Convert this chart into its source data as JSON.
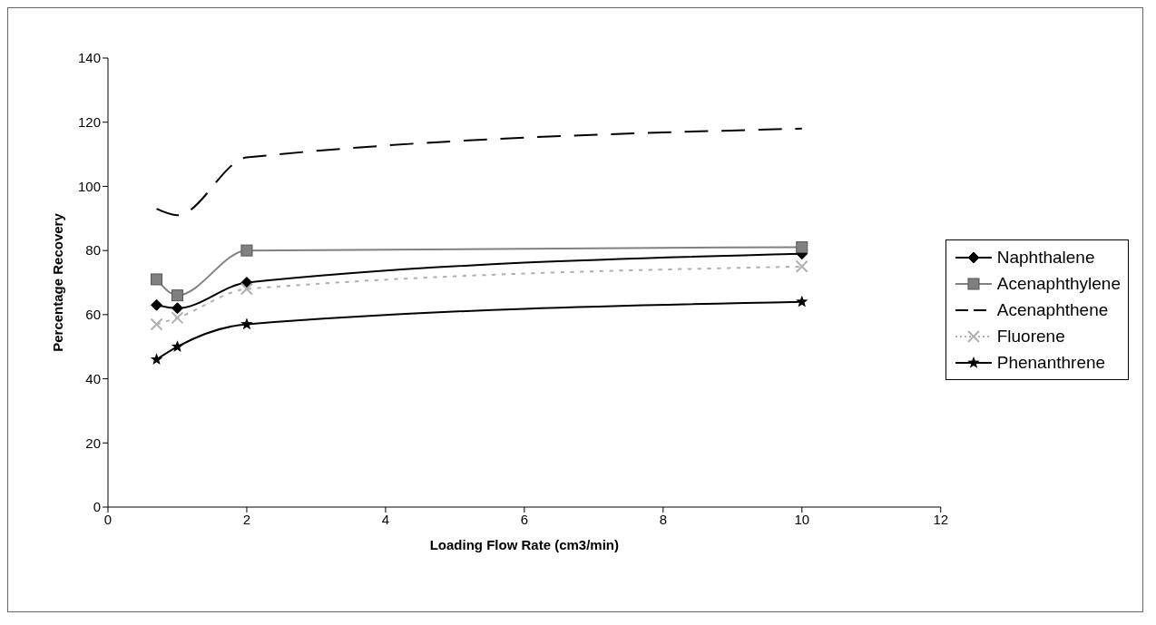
{
  "chart_data": {
    "type": "line",
    "xlabel": "Loading Flow Rate (cm3/min)",
    "ylabel": "Percentage Recovery",
    "x": [
      0.7,
      1,
      2,
      10
    ],
    "xlim": [
      0,
      12
    ],
    "xticks": [
      0,
      2,
      4,
      6,
      8,
      10,
      12
    ],
    "ylim": [
      0,
      140
    ],
    "yticks": [
      0,
      20,
      40,
      60,
      80,
      100,
      120,
      140
    ],
    "legend": "right",
    "series": [
      {
        "name": "Naphthalene",
        "color": "#000000",
        "marker": "diamond",
        "line_style": "solid",
        "values": [
          63,
          62,
          70,
          79
        ]
      },
      {
        "name": "Acenaphthylene",
        "color": "#808080",
        "marker": "square",
        "line_style": "solid",
        "values": [
          71,
          66,
          80,
          81
        ]
      },
      {
        "name": "Acenaphthene",
        "color": "#000000",
        "marker": "none",
        "line_style": "dashed",
        "values": [
          93,
          91,
          109,
          118
        ]
      },
      {
        "name": "Fluorene",
        "color": "#b0b0b0",
        "marker": "cross",
        "line_style": "dotted",
        "values": [
          57,
          59,
          68,
          75
        ]
      },
      {
        "name": "Phenanthrene",
        "color": "#000000",
        "marker": "star",
        "line_style": "solid",
        "values": [
          46,
          50,
          57,
          64
        ]
      }
    ]
  }
}
